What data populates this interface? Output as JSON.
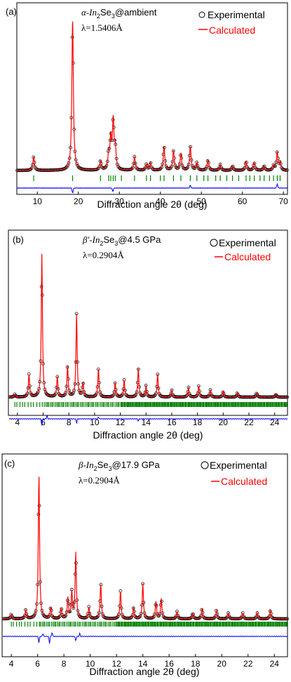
{
  "chart_data": [
    {
      "type": "line",
      "panel_label": "(a)",
      "title_main": "α-In",
      "title_sub1": "2",
      "title_mid": "Se",
      "title_sub2": "3",
      "title_end": "@ambient",
      "wavelength": "λ=1.5406Å",
      "legend": {
        "experimental": "Experimental",
        "calculated": "Calculated",
        "placement": "top-right"
      },
      "xlabel": "Diffraction angle 2θ (deg)",
      "xlim": [
        5,
        71
      ],
      "xticks": [
        10,
        20,
        30,
        40,
        50,
        60,
        70
      ],
      "series_colors": {
        "experimental": "#000000",
        "calculated": "#ff0000",
        "difference": "#0000ff",
        "bragg": "#008000"
      },
      "peaks": [
        {
          "x": 9.1,
          "h": 0.09
        },
        {
          "x": 18.6,
          "h": 1.0
        },
        {
          "x": 25.4,
          "h": 0.06
        },
        {
          "x": 27.4,
          "h": 0.1
        },
        {
          "x": 27.9,
          "h": 0.2
        },
        {
          "x": 28.5,
          "h": 0.32
        },
        {
          "x": 29.0,
          "h": 0.14
        },
        {
          "x": 33.7,
          "h": 0.09
        },
        {
          "x": 36.6,
          "h": 0.04
        },
        {
          "x": 37.6,
          "h": 0.05
        },
        {
          "x": 40.9,
          "h": 0.16
        },
        {
          "x": 43.2,
          "h": 0.13
        },
        {
          "x": 45.0,
          "h": 0.11
        },
        {
          "x": 47.3,
          "h": 0.16
        },
        {
          "x": 48.9,
          "h": 0.05
        },
        {
          "x": 51.6,
          "h": 0.07
        },
        {
          "x": 54.6,
          "h": 0.04
        },
        {
          "x": 57.6,
          "h": 0.03
        },
        {
          "x": 60.9,
          "h": 0.06
        },
        {
          "x": 62.9,
          "h": 0.05
        },
        {
          "x": 65.3,
          "h": 0.03
        },
        {
          "x": 67.6,
          "h": 0.03
        },
        {
          "x": 68.5,
          "h": 0.12
        },
        {
          "x": 69.2,
          "h": 0.05
        }
      ],
      "bragg_positions": [
        9.1,
        18.6,
        25.4,
        27.4,
        27.9,
        28.5,
        29.0,
        30.5,
        33.7,
        36.6,
        37.6,
        40.0,
        40.9,
        43.2,
        45.0,
        47.3,
        48.9,
        50.6,
        51.6,
        53.5,
        54.6,
        56.2,
        57.6,
        59.1,
        60.9,
        61.8,
        62.9,
        64.3,
        65.3,
        66.6,
        67.6,
        68.5,
        69.2
      ],
      "difference_spikes": [
        {
          "x": 18.6,
          "a": -0.9
        },
        {
          "x": 28.4,
          "a": -0.6
        },
        {
          "x": 47.3,
          "a": 0.5
        },
        {
          "x": 68.5,
          "a": 0.7
        }
      ]
    },
    {
      "type": "line",
      "panel_label": "(b)",
      "title_main": "β′-In",
      "title_sub1": "2",
      "title_mid": "Se",
      "title_sub2": "3",
      "title_end": "@4.5 GPa",
      "wavelength": "λ=0.2904Å",
      "legend": {
        "experimental": "Experimental",
        "calculated": "Calculated",
        "placement": "top-right"
      },
      "xlabel": "Diffraction angle 2θ (deg)",
      "xlim": [
        3.3,
        25
      ],
      "xticks": [
        4,
        6,
        8,
        10,
        12,
        14,
        16,
        18,
        20,
        22,
        24
      ],
      "peaks": [
        {
          "x": 3.8,
          "h": 0.02
        },
        {
          "x": 4.9,
          "h": 0.16
        },
        {
          "x": 5.9,
          "h": 1.0
        },
        {
          "x": 7.1,
          "h": 0.14
        },
        {
          "x": 7.9,
          "h": 0.22
        },
        {
          "x": 8.6,
          "h": 0.58
        },
        {
          "x": 9.1,
          "h": 0.1
        },
        {
          "x": 10.3,
          "h": 0.2
        },
        {
          "x": 11.6,
          "h": 0.1
        },
        {
          "x": 12.3,
          "h": 0.12
        },
        {
          "x": 13.4,
          "h": 0.2
        },
        {
          "x": 14.0,
          "h": 0.08
        },
        {
          "x": 14.9,
          "h": 0.16
        },
        {
          "x": 16.0,
          "h": 0.05
        },
        {
          "x": 17.3,
          "h": 0.07
        },
        {
          "x": 18.1,
          "h": 0.08
        },
        {
          "x": 19.0,
          "h": 0.05
        },
        {
          "x": 20.0,
          "h": 0.04
        },
        {
          "x": 21.1,
          "h": 0.03
        },
        {
          "x": 22.6,
          "h": 0.03
        },
        {
          "x": 24.1,
          "h": 0.02
        }
      ],
      "bragg_range": [
        3.8,
        25
      ],
      "difference_spikes": [
        {
          "x": 5.9,
          "a": -1.0
        },
        {
          "x": 6.3,
          "a": 0.5
        },
        {
          "x": 8.6,
          "a": -0.6
        },
        {
          "x": 10.3,
          "a": 0.3
        },
        {
          "x": 13.4,
          "a": -0.3
        }
      ]
    },
    {
      "type": "line",
      "panel_label": "(c)",
      "title_main": "β-In",
      "title_sub1": "2",
      "title_mid": "Se",
      "title_sub2": "3",
      "title_end": "@17.9 GPa",
      "wavelength": "λ=0.2904Å",
      "legend": {
        "experimental": "Experimental",
        "calculated": "Calculated",
        "placement": "top-right"
      },
      "xlabel": "Diffraction angle 2θ (deg)",
      "xlim": [
        3.3,
        25
      ],
      "xticks": [
        4,
        6,
        8,
        10,
        12,
        14,
        16,
        18,
        20,
        22,
        24
      ],
      "peaks": [
        {
          "x": 4.0,
          "h": 0.03
        },
        {
          "x": 5.1,
          "h": 0.06
        },
        {
          "x": 6.1,
          "h": 1.0
        },
        {
          "x": 7.0,
          "h": 0.08
        },
        {
          "x": 7.8,
          "h": 0.07
        },
        {
          "x": 8.3,
          "h": 0.14
        },
        {
          "x": 8.6,
          "h": 0.18
        },
        {
          "x": 8.9,
          "h": 0.45
        },
        {
          "x": 9.9,
          "h": 0.08
        },
        {
          "x": 10.8,
          "h": 0.24
        },
        {
          "x": 12.3,
          "h": 0.19
        },
        {
          "x": 13.3,
          "h": 0.08
        },
        {
          "x": 14.0,
          "h": 0.24
        },
        {
          "x": 15.0,
          "h": 0.12
        },
        {
          "x": 15.4,
          "h": 0.14
        },
        {
          "x": 16.6,
          "h": 0.05
        },
        {
          "x": 17.8,
          "h": 0.04
        },
        {
          "x": 18.5,
          "h": 0.07
        },
        {
          "x": 19.6,
          "h": 0.06
        },
        {
          "x": 20.5,
          "h": 0.04
        },
        {
          "x": 21.6,
          "h": 0.04
        },
        {
          "x": 22.7,
          "h": 0.04
        },
        {
          "x": 23.7,
          "h": 0.06
        }
      ],
      "bragg_range": [
        4.0,
        25
      ],
      "difference_spikes": [
        {
          "x": 6.1,
          "a": -0.9
        },
        {
          "x": 6.4,
          "a": 0.4
        },
        {
          "x": 6.9,
          "a": -1.0
        },
        {
          "x": 7.1,
          "a": 0.6
        },
        {
          "x": 8.9,
          "a": -0.7
        },
        {
          "x": 9.2,
          "a": 0.4
        }
      ]
    }
  ]
}
